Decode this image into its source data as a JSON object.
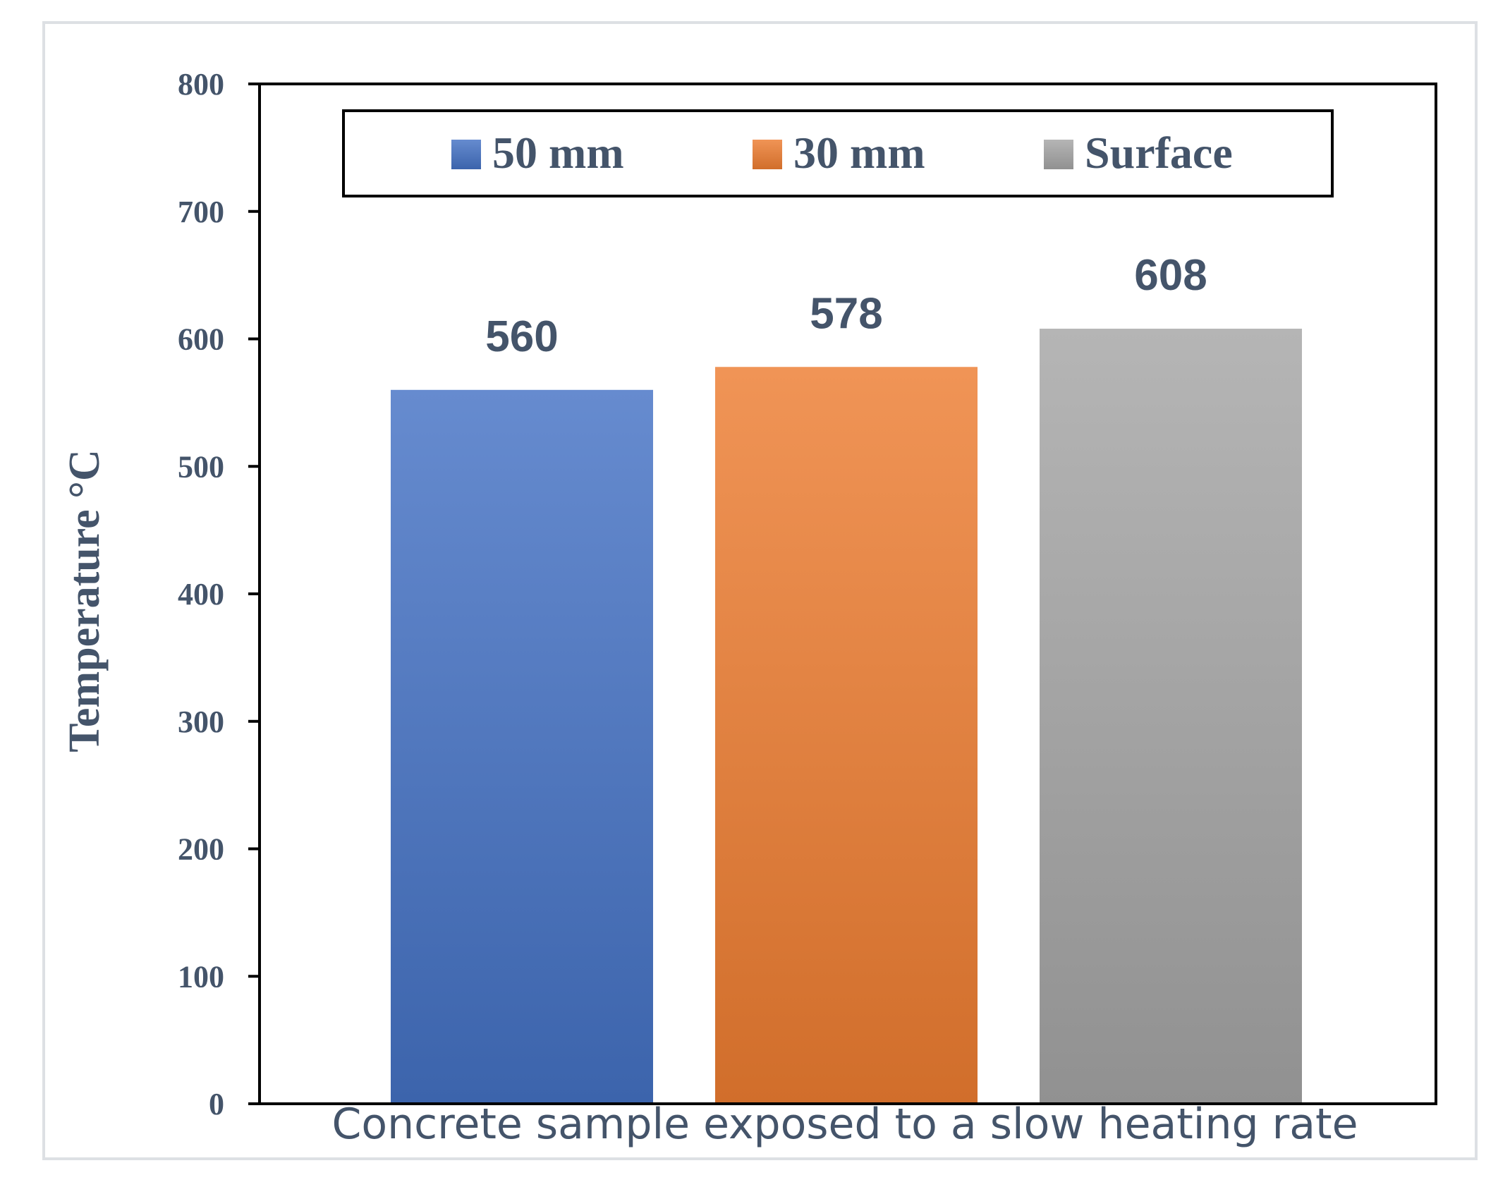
{
  "chart_data": {
    "type": "bar",
    "title": "",
    "xlabel": "Concrete sample exposed to a slow heating rate",
    "ylabel": "Temperature °C",
    "ylim": [
      0,
      800
    ],
    "yticks": [
      0,
      100,
      200,
      300,
      400,
      500,
      600,
      700,
      800
    ],
    "grid": false,
    "legend_position": "top",
    "series": [
      {
        "name": "50 mm",
        "values": [
          560
        ],
        "color": "#4472c4"
      },
      {
        "name": "30 mm",
        "values": [
          578
        ],
        "color": "#ed7d31"
      },
      {
        "name": "Surface",
        "values": [
          608
        ],
        "color": "#a5a5a5"
      }
    ],
    "data_labels": [
      "560",
      "578",
      "608"
    ]
  }
}
